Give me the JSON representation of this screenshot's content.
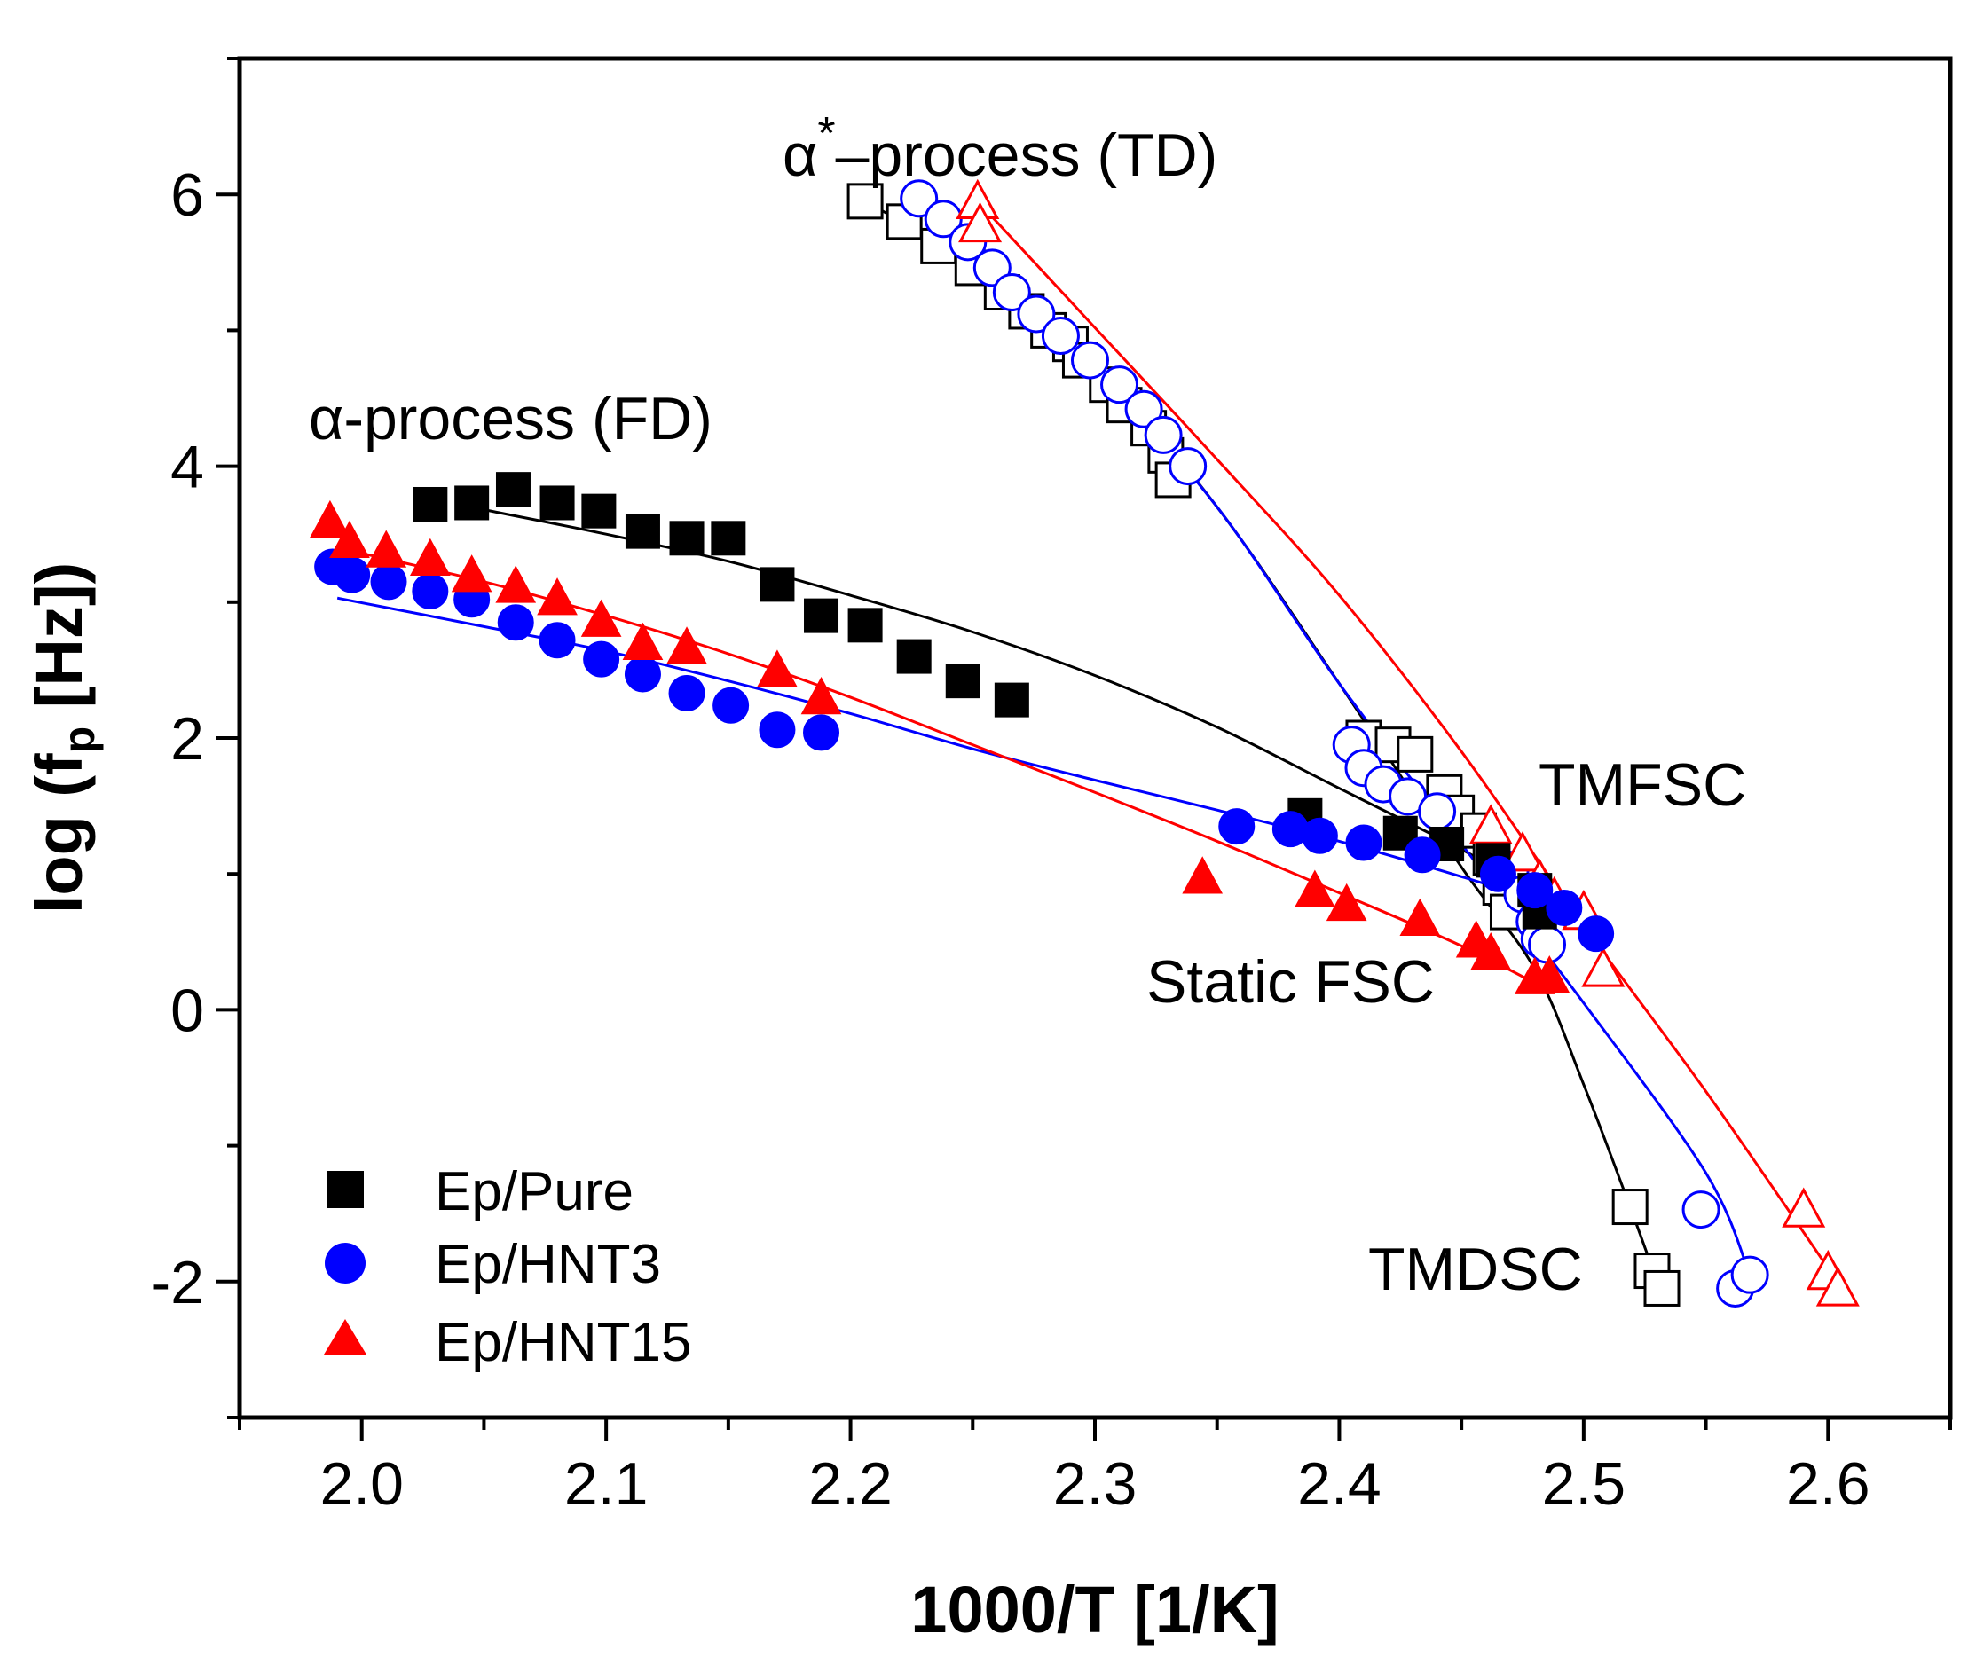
{
  "chart_data": {
    "type": "scatter",
    "xlabel": "1000/T [1/K]",
    "ylabel": {
      "pre": "log (f",
      "sub": "p",
      "post": " [Hz])"
    },
    "xlim": [
      1.95,
      2.65
    ],
    "ylim": [
      -3,
      7
    ],
    "x_ticks": [
      "2.0",
      "2.1",
      "2.2",
      "2.3",
      "2.4",
      "2.5",
      "2.6"
    ],
    "y_ticks": [
      "-2",
      "0",
      "2",
      "4",
      "6"
    ],
    "legend": {
      "placement": "bottom-left",
      "items": [
        "Ep/Pure",
        "Ep/HNT3",
        "Ep/HNT15"
      ]
    },
    "annotations": {
      "alpha_fd": "α-process (FD)",
      "alpha_star_greek": "α",
      "alpha_star_sup": "*",
      "alpha_star_rest": "–process (TD)",
      "tmfsc": "TMFSC",
      "static_fsc": "Static FSC",
      "tmdsc": "TMDSC"
    },
    "series": [
      {
        "name": "Ep/Pure",
        "color": "#000000",
        "marker": "square",
        "fd": [
          [
            2.028,
            3.72
          ],
          [
            2.045,
            3.73
          ],
          [
            2.062,
            3.83
          ],
          [
            2.08,
            3.73
          ],
          [
            2.097,
            3.67
          ],
          [
            2.115,
            3.52
          ],
          [
            2.133,
            3.47
          ],
          [
            2.15,
            3.47
          ],
          [
            2.17,
            3.13
          ],
          [
            2.188,
            2.9
          ],
          [
            2.206,
            2.83
          ],
          [
            2.226,
            2.6
          ],
          [
            2.246,
            2.42
          ],
          [
            2.266,
            2.28
          ],
          [
            2.386,
            1.43
          ],
          [
            2.425,
            1.3
          ],
          [
            2.444,
            1.22
          ],
          [
            2.463,
            1.1
          ],
          [
            2.48,
            0.88
          ],
          [
            2.482,
            0.72
          ]
        ],
        "td": [
          [
            2.206,
            5.95
          ],
          [
            2.222,
            5.8
          ],
          [
            2.236,
            5.62
          ],
          [
            2.25,
            5.46
          ],
          [
            2.262,
            5.28
          ],
          [
            2.272,
            5.14
          ],
          [
            2.281,
            5.0
          ],
          [
            2.29,
            4.9
          ],
          [
            2.294,
            4.78
          ],
          [
            2.305,
            4.6
          ],
          [
            2.312,
            4.45
          ],
          [
            2.322,
            4.28
          ],
          [
            2.329,
            4.08
          ],
          [
            2.332,
            3.9
          ],
          [
            2.41,
            2.0
          ],
          [
            2.422,
            1.95
          ],
          [
            2.431,
            1.88
          ],
          [
            2.443,
            1.6
          ],
          [
            2.448,
            1.45
          ],
          [
            2.457,
            1.32
          ],
          [
            2.462,
            1.12
          ],
          [
            2.466,
            0.9
          ],
          [
            2.469,
            0.72
          ],
          [
            2.519,
            -1.45
          ],
          [
            2.528,
            -1.92
          ],
          [
            2.532,
            -2.05
          ]
        ],
        "fd_fit": [
          [
            2.05,
            3.68
          ],
          [
            2.1,
            3.5
          ],
          [
            2.15,
            3.3
          ],
          [
            2.2,
            3.05
          ],
          [
            2.25,
            2.78
          ],
          [
            2.3,
            2.46
          ],
          [
            2.35,
            2.08
          ],
          [
            2.4,
            1.63
          ],
          [
            2.45,
            1.18
          ],
          [
            2.48,
            0.88
          ]
        ],
        "td_fit": [
          [
            2.206,
            5.95
          ],
          [
            2.25,
            5.48
          ],
          [
            2.3,
            4.75
          ],
          [
            2.35,
            3.7
          ],
          [
            2.4,
            2.4
          ],
          [
            2.45,
            1.05
          ],
          [
            2.48,
            0.3
          ],
          [
            2.5,
            -0.55
          ],
          [
            2.52,
            -1.5
          ],
          [
            2.532,
            -2.1
          ]
        ]
      },
      {
        "name": "Ep/HNT3",
        "color": "#0000ff",
        "marker": "circle",
        "fd": [
          [
            1.988,
            3.26
          ],
          [
            1.996,
            3.2
          ],
          [
            2.011,
            3.15
          ],
          [
            2.028,
            3.08
          ],
          [
            2.045,
            3.02
          ],
          [
            2.063,
            2.85
          ],
          [
            2.08,
            2.72
          ],
          [
            2.098,
            2.58
          ],
          [
            2.115,
            2.47
          ],
          [
            2.133,
            2.33
          ],
          [
            2.151,
            2.24
          ],
          [
            2.17,
            2.06
          ],
          [
            2.188,
            2.04
          ],
          [
            2.358,
            1.35
          ],
          [
            2.38,
            1.33
          ],
          [
            2.392,
            1.28
          ],
          [
            2.41,
            1.23
          ],
          [
            2.434,
            1.14
          ],
          [
            2.465,
            1.0
          ],
          [
            2.48,
            0.88
          ],
          [
            2.492,
            0.75
          ],
          [
            2.505,
            0.56
          ]
        ],
        "td": [
          [
            2.228,
            5.97
          ],
          [
            2.238,
            5.82
          ],
          [
            2.248,
            5.65
          ],
          [
            2.258,
            5.46
          ],
          [
            2.266,
            5.28
          ],
          [
            2.276,
            5.12
          ],
          [
            2.286,
            4.96
          ],
          [
            2.298,
            4.78
          ],
          [
            2.31,
            4.6
          ],
          [
            2.32,
            4.42
          ],
          [
            2.328,
            4.23
          ],
          [
            2.338,
            4.0
          ],
          [
            2.405,
            1.95
          ],
          [
            2.41,
            1.78
          ],
          [
            2.418,
            1.66
          ],
          [
            2.428,
            1.57
          ],
          [
            2.44,
            1.46
          ],
          [
            2.47,
            1.03
          ],
          [
            2.475,
            0.85
          ],
          [
            2.48,
            0.65
          ],
          [
            2.482,
            0.52
          ],
          [
            2.485,
            0.48
          ],
          [
            2.548,
            -1.47
          ],
          [
            2.562,
            -2.05
          ],
          [
            2.568,
            -1.95
          ]
        ],
        "fd_fit": [
          [
            1.99,
            3.03
          ],
          [
            2.05,
            2.82
          ],
          [
            2.1,
            2.64
          ],
          [
            2.15,
            2.42
          ],
          [
            2.2,
            2.18
          ],
          [
            2.25,
            1.92
          ],
          [
            2.3,
            1.69
          ],
          [
            2.35,
            1.47
          ],
          [
            2.4,
            1.24
          ],
          [
            2.45,
            0.98
          ],
          [
            2.5,
            0.7
          ]
        ],
        "td_fit": [
          [
            2.228,
            6.0
          ],
          [
            2.3,
            4.72
          ],
          [
            2.35,
            3.7
          ],
          [
            2.4,
            2.4
          ],
          [
            2.45,
            1.22
          ],
          [
            2.5,
            0.05
          ],
          [
            2.55,
            -1.2
          ],
          [
            2.568,
            -1.95
          ]
        ]
      },
      {
        "name": "Ep/HNT15",
        "color": "#ff0000",
        "marker": "triangle",
        "fd": [
          [
            1.987,
            3.6
          ],
          [
            1.995,
            3.45
          ],
          [
            2.01,
            3.38
          ],
          [
            2.028,
            3.32
          ],
          [
            2.045,
            3.2
          ],
          [
            2.063,
            3.12
          ],
          [
            2.08,
            3.03
          ],
          [
            2.098,
            2.87
          ],
          [
            2.115,
            2.7
          ],
          [
            2.133,
            2.67
          ],
          [
            2.17,
            2.5
          ],
          [
            2.188,
            2.3
          ],
          [
            2.344,
            0.98
          ],
          [
            2.39,
            0.88
          ],
          [
            2.403,
            0.78
          ],
          [
            2.433,
            0.67
          ],
          [
            2.456,
            0.51
          ],
          [
            2.462,
            0.42
          ],
          [
            2.48,
            0.24
          ],
          [
            2.486,
            0.25
          ]
        ],
        "td": [
          [
            2.252,
            5.95
          ],
          [
            2.253,
            5.78
          ],
          [
            2.462,
            1.35
          ],
          [
            2.475,
            1.15
          ],
          [
            2.482,
            0.95
          ],
          [
            2.488,
            0.82
          ],
          [
            2.5,
            0.72
          ],
          [
            2.508,
            0.3
          ],
          [
            2.59,
            -1.47
          ],
          [
            2.6,
            -1.93
          ],
          [
            2.604,
            -2.05
          ]
        ],
        "fd_fit": [
          [
            1.99,
            3.4
          ],
          [
            2.05,
            3.15
          ],
          [
            2.1,
            2.9
          ],
          [
            2.15,
            2.62
          ],
          [
            2.2,
            2.3
          ],
          [
            2.25,
            1.95
          ],
          [
            2.3,
            1.6
          ],
          [
            2.35,
            1.24
          ],
          [
            2.4,
            0.86
          ],
          [
            2.45,
            0.47
          ],
          [
            2.485,
            0.15
          ]
        ],
        "td_fit": [
          [
            2.252,
            5.95
          ],
          [
            2.3,
            5.02
          ],
          [
            2.35,
            4.05
          ],
          [
            2.4,
            3.05
          ],
          [
            2.45,
            1.9
          ],
          [
            2.5,
            0.62
          ],
          [
            2.55,
            -0.6
          ],
          [
            2.6,
            -1.9
          ]
        ]
      }
    ]
  }
}
